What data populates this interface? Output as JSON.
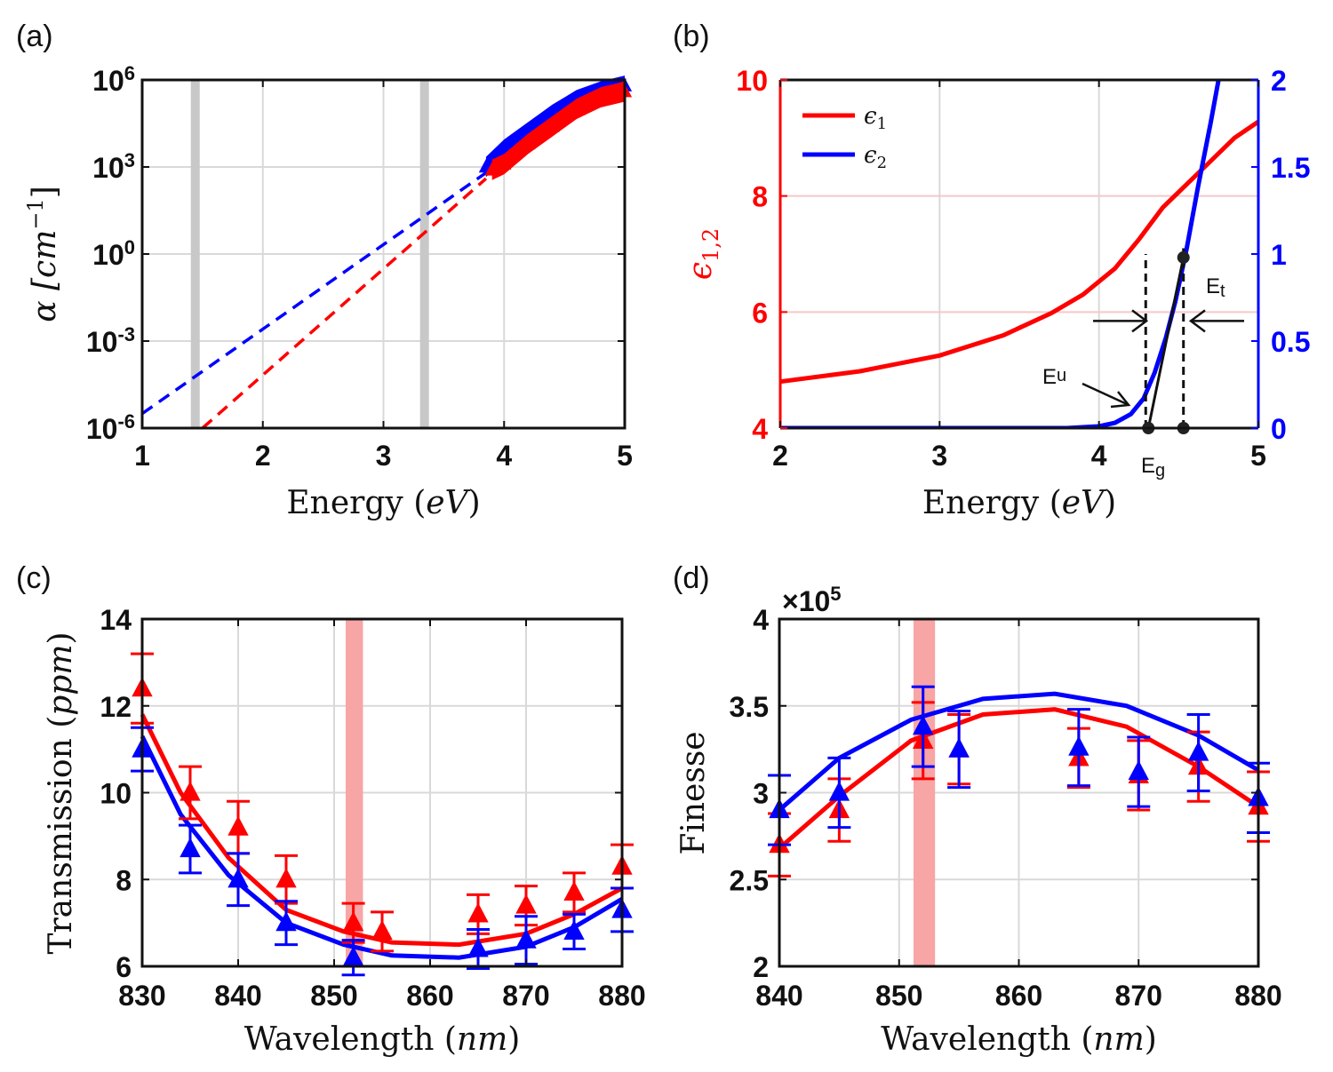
{
  "colors": {
    "red": "#ff0000",
    "blue": "#0000ff",
    "grid": "#d9d9d9",
    "shade_gray": "#c8c8c8",
    "shade_red": "#f7a5a5"
  },
  "chart_data": [
    {
      "panel": "(a)",
      "type": "line",
      "xlabel_main": "Energy (",
      "xlabel_var": "eV",
      "xlabel_close": ")",
      "ylabel": "α [cm^-1]",
      "ylabel_parts": {
        "alpha": "α",
        "unit": "[cm",
        "exp": "−1",
        "close": "]"
      },
      "xlim": [
        1,
        5
      ],
      "ylim_log10": [
        -6,
        6
      ],
      "xticks": [
        "1",
        "2",
        "3",
        "4",
        "5"
      ],
      "yticks": [
        {
          "base": "10",
          "exp": "-6",
          "v": -6
        },
        {
          "base": "10",
          "exp": "-3",
          "v": -3
        },
        {
          "base": "10",
          "exp": "0",
          "v": 0
        },
        {
          "base": "10",
          "exp": "3",
          "v": 3
        },
        {
          "base": "10",
          "exp": "6",
          "v": 6
        }
      ],
      "shaded_x": [
        1.44,
        3.34
      ],
      "series": [
        {
          "name": "blue fit",
          "color": "blue",
          "style": "dashed",
          "x": [
            1.0,
            3.85
          ],
          "log10_y": [
            -5.5,
            2.8
          ]
        },
        {
          "name": "red fit",
          "color": "red",
          "style": "dashed",
          "x": [
            1.5,
            3.85
          ],
          "log10_y": [
            -6.0,
            2.6
          ]
        },
        {
          "name": "blue data",
          "color": "blue",
          "style": "band",
          "x": [
            3.85,
            4.0,
            4.2,
            4.4,
            4.6,
            4.8,
            5.0
          ],
          "log10_y": [
            3.0,
            3.6,
            4.2,
            4.8,
            5.3,
            5.6,
            5.8
          ]
        },
        {
          "name": "red data",
          "color": "red",
          "style": "band",
          "x": [
            3.9,
            4.0,
            4.2,
            4.4,
            4.6,
            4.8,
            5.0
          ],
          "log10_y": [
            2.9,
            3.1,
            3.8,
            4.4,
            5.0,
            5.4,
            5.6
          ]
        }
      ]
    },
    {
      "panel": "(b)",
      "type": "line",
      "xlabel_main": "Energy (",
      "xlabel_var": "eV",
      "xlabel_close": ")",
      "ylabel_left": "ϵ1,2",
      "ylabel_parts": {
        "base": "ϵ",
        "sub": "1,2"
      },
      "xlim": [
        2,
        5
      ],
      "ylim_left": [
        4,
        10
      ],
      "ylim_right": [
        0,
        2
      ],
      "xticks": [
        "2",
        "3",
        "4",
        "5"
      ],
      "yticks_left": [
        "4",
        "6",
        "8",
        "10"
      ],
      "yticks_right": [
        "0",
        "0.5",
        "1",
        "1.5",
        "2"
      ],
      "legend": [
        {
          "label": "ϵ",
          "sub": "1",
          "color": "red"
        },
        {
          "label": "ϵ",
          "sub": "2",
          "color": "blue"
        }
      ],
      "annotations": {
        "eu": "E",
        "eu_sub": "u",
        "eg": "E",
        "eg_sub": "g",
        "et": "E",
        "et_sub": "t"
      },
      "eg": 4.31,
      "et": 4.53,
      "tangent_top": [
        4.53,
        0.98
      ],
      "series": [
        {
          "name": "ϵ1",
          "color": "red",
          "axis": "left",
          "x": [
            2.0,
            2.5,
            3.0,
            3.4,
            3.7,
            3.9,
            4.1,
            4.25,
            4.4,
            4.55,
            4.7,
            4.85,
            5.0
          ],
          "y": [
            4.8,
            4.98,
            5.25,
            5.6,
            5.98,
            6.3,
            6.75,
            7.25,
            7.8,
            8.2,
            8.6,
            9.0,
            9.28
          ]
        },
        {
          "name": "ϵ2",
          "color": "blue",
          "axis": "right",
          "x": [
            2.0,
            3.8,
            4.0,
            4.1,
            4.2,
            4.28,
            4.35,
            4.42,
            4.48,
            4.55,
            4.62,
            4.7,
            4.76
          ],
          "y": [
            0.0,
            0.0,
            0.01,
            0.03,
            0.08,
            0.17,
            0.32,
            0.52,
            0.73,
            1.03,
            1.38,
            1.75,
            2.05
          ]
        }
      ]
    },
    {
      "panel": "(c)",
      "type": "line",
      "xlabel_main": "Wavelength (",
      "xlabel_var": "nm",
      "xlabel_close": ")",
      "ylabel_main": "Transmission (",
      "ylabel_var": "ppm",
      "ylabel_close": ")",
      "xlim": [
        830,
        880
      ],
      "ylim": [
        6,
        14
      ],
      "xticks": [
        "830",
        "840",
        "850",
        "860",
        "870",
        "880"
      ],
      "yticks": [
        "6",
        "8",
        "10",
        "12",
        "14"
      ],
      "shaded_band": [
        851.2,
        853.0
      ],
      "series": [
        {
          "name": "red model",
          "color": "red",
          "style": "line",
          "x": [
            830,
            834,
            839,
            845,
            851,
            856,
            863,
            870,
            875,
            880
          ],
          "y": [
            11.8,
            10.0,
            8.5,
            7.3,
            6.8,
            6.55,
            6.5,
            6.75,
            7.2,
            7.8
          ]
        },
        {
          "name": "blue model",
          "color": "blue",
          "style": "line",
          "x": [
            830,
            834,
            839,
            845,
            851,
            856,
            863,
            870,
            875,
            880
          ],
          "y": [
            11.3,
            9.5,
            8.1,
            7.0,
            6.5,
            6.25,
            6.2,
            6.45,
            6.9,
            7.55
          ]
        },
        {
          "name": "red data",
          "color": "red",
          "style": "marker",
          "x": [
            830,
            835,
            840,
            845,
            852,
            855,
            865,
            870,
            875,
            880
          ],
          "y": [
            12.4,
            10.0,
            9.2,
            8.0,
            7.0,
            6.8,
            7.2,
            7.4,
            7.7,
            8.3
          ],
          "err": [
            0.8,
            0.6,
            0.6,
            0.55,
            0.45,
            0.45,
            0.45,
            0.45,
            0.45,
            0.5
          ]
        },
        {
          "name": "blue data",
          "color": "blue",
          "style": "marker",
          "x": [
            830,
            835,
            840,
            845,
            852,
            865,
            870,
            875,
            880
          ],
          "y": [
            11.0,
            8.7,
            8.0,
            7.0,
            6.2,
            6.4,
            6.6,
            6.8,
            7.3
          ],
          "err": [
            0.5,
            0.55,
            0.6,
            0.5,
            0.4,
            0.45,
            0.55,
            0.4,
            0.5
          ]
        }
      ]
    },
    {
      "panel": "(d)",
      "type": "line",
      "xlabel_main": "Wavelength (",
      "xlabel_var": "nm",
      "xlabel_close": ")",
      "ylabel": "Finesse",
      "exponent_label": {
        "times": "×10",
        "exp": "5"
      },
      "xlim": [
        840,
        880
      ],
      "ylim": [
        2,
        4
      ],
      "xticks": [
        "840",
        "850",
        "860",
        "870",
        "880"
      ],
      "yticks": [
        "2",
        "2.5",
        "3",
        "3.5",
        "4"
      ],
      "shaded_band": [
        851.2,
        853.0
      ],
      "series": [
        {
          "name": "red model",
          "color": "red",
          "style": "line",
          "x": [
            840,
            845,
            851,
            857,
            863,
            869,
            875,
            880
          ],
          "y": [
            2.68,
            2.98,
            3.3,
            3.45,
            3.48,
            3.38,
            3.15,
            2.92
          ]
        },
        {
          "name": "blue model",
          "color": "blue",
          "style": "line",
          "x": [
            840,
            845,
            851,
            857,
            863,
            869,
            875,
            880
          ],
          "y": [
            2.9,
            3.2,
            3.42,
            3.54,
            3.57,
            3.5,
            3.33,
            3.13
          ]
        },
        {
          "name": "red data",
          "color": "red",
          "style": "marker",
          "x": [
            840,
            845,
            852,
            855,
            865,
            870,
            875,
            880
          ],
          "y": [
            2.7,
            2.9,
            3.3,
            3.25,
            3.2,
            3.1,
            3.15,
            2.92
          ],
          "err": [
            0.18,
            0.18,
            0.22,
            0.2,
            0.17,
            0.2,
            0.2,
            0.2
          ]
        },
        {
          "name": "blue data",
          "color": "blue",
          "style": "marker",
          "x": [
            840,
            845,
            852,
            855,
            865,
            870,
            875,
            880
          ],
          "y": [
            2.9,
            3.0,
            3.38,
            3.25,
            3.26,
            3.12,
            3.23,
            2.97
          ],
          "err": [
            0.2,
            0.2,
            0.23,
            0.22,
            0.22,
            0.2,
            0.22,
            0.2
          ]
        }
      ]
    }
  ]
}
